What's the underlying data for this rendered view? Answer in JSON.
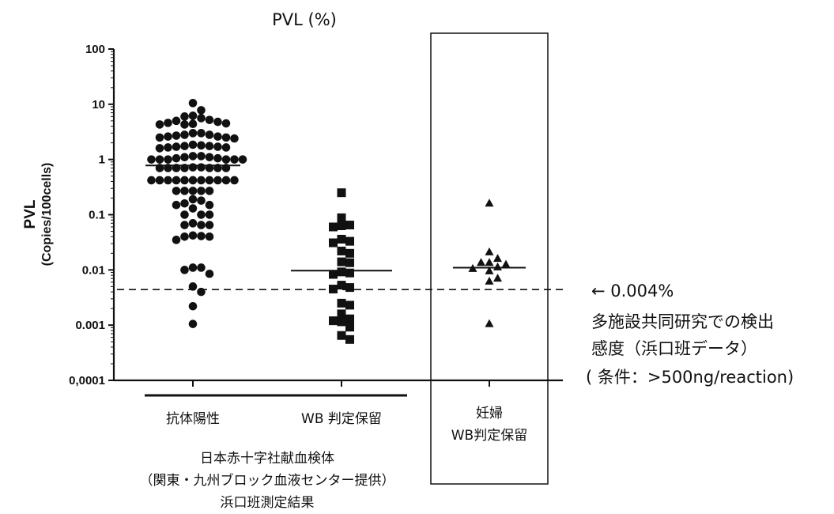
{
  "chart_data": {
    "type": "scatter",
    "title": "PVL (%)",
    "ylabel": "PVL",
    "ylabel_sub": "(Copies/100cells)",
    "yscale": "log",
    "ylim": [
      0.0001,
      100
    ],
    "yticks": [
      {
        "value": 100,
        "label": "100"
      },
      {
        "value": 10,
        "label": "10"
      },
      {
        "value": 1,
        "label": "1"
      },
      {
        "value": 0.1,
        "label": "0.1"
      },
      {
        "value": 0.01,
        "label": "0.01"
      },
      {
        "value": 0.001,
        "label": "0.001"
      },
      {
        "value": 0.0001,
        "label": "0,0001"
      }
    ],
    "categories": [
      "抗体陽性",
      "WB 判定保留",
      "妊婦\nWB判定保留"
    ],
    "series": [
      {
        "category": "抗体陽性",
        "marker": "circle",
        "median": 0.78,
        "values": [
          10.5,
          7.8,
          6.2,
          5.2,
          4.8,
          4.5,
          4.4,
          4.3,
          4.3,
          4.6,
          5.0,
          5.6,
          6.0,
          3.0,
          2.8,
          2.6,
          2.5,
          2.4,
          2.5,
          2.6,
          2.7,
          2.8,
          3.0,
          1.85,
          1.75,
          1.7,
          1.65,
          1.6,
          1.65,
          1.7,
          1.75,
          1.8,
          1.15,
          1.1,
          1.05,
          1.0,
          1.0,
          1.0,
          1.0,
          1.0,
          1.0,
          1.05,
          1.1,
          1.15,
          0.72,
          0.7,
          0.7,
          0.7,
          0.7,
          0.7,
          0.7,
          0.7,
          0.72,
          0.42,
          0.42,
          0.42,
          0.42,
          0.42,
          0.42,
          0.42,
          0.42,
          0.42,
          0.42,
          0.42,
          0.27,
          0.27,
          0.27,
          0.27,
          0.27,
          0.15,
          0.13,
          0.15,
          0.16,
          0.18,
          0.19,
          0.1,
          0.1,
          0.1,
          0.065,
          0.065,
          0.065,
          0.07,
          0.042,
          0.04,
          0.04,
          0.041,
          0.035,
          0.011,
          0.01,
          0.011,
          0.0085,
          0.005,
          0.004,
          0.0022,
          0.00105
        ]
      },
      {
        "category": "WB 判定保留",
        "marker": "square",
        "median": 0.0097,
        "values": [
          0.25,
          0.088,
          0.065,
          0.063,
          0.06,
          0.036,
          0.033,
          0.031,
          0.022,
          0.02,
          0.014,
          0.0135,
          0.0092,
          0.0088,
          0.0083,
          0.0053,
          0.0048,
          0.0045,
          0.0025,
          0.0023,
          0.0016,
          0.0013,
          0.0012,
          0.00115,
          0.00092,
          0.00065,
          0.00055
        ]
      },
      {
        "category": "妊婦\nWB判定保留",
        "marker": "triangle",
        "median": 0.011,
        "values": [
          0.16,
          0.021,
          0.016,
          0.0135,
          0.0135,
          0.0125,
          0.0112,
          0.0105,
          0.0095,
          0.007,
          0.0062,
          0.00105
        ]
      }
    ],
    "reference_line": {
      "value": 0.0044,
      "style": "dashed"
    },
    "annotation": {
      "line1": "← 0.004%",
      "line2": "多施設共同研究での検出",
      "line3": "感度（浜口班データ）",
      "line4": "( 条件：>500ng/reaction)"
    },
    "group_label": {
      "line1": "日本赤十字社献血検体",
      "line2": "（関東・九州ブロック血液センター提供）",
      "line3": "浜口班測定結果"
    }
  }
}
